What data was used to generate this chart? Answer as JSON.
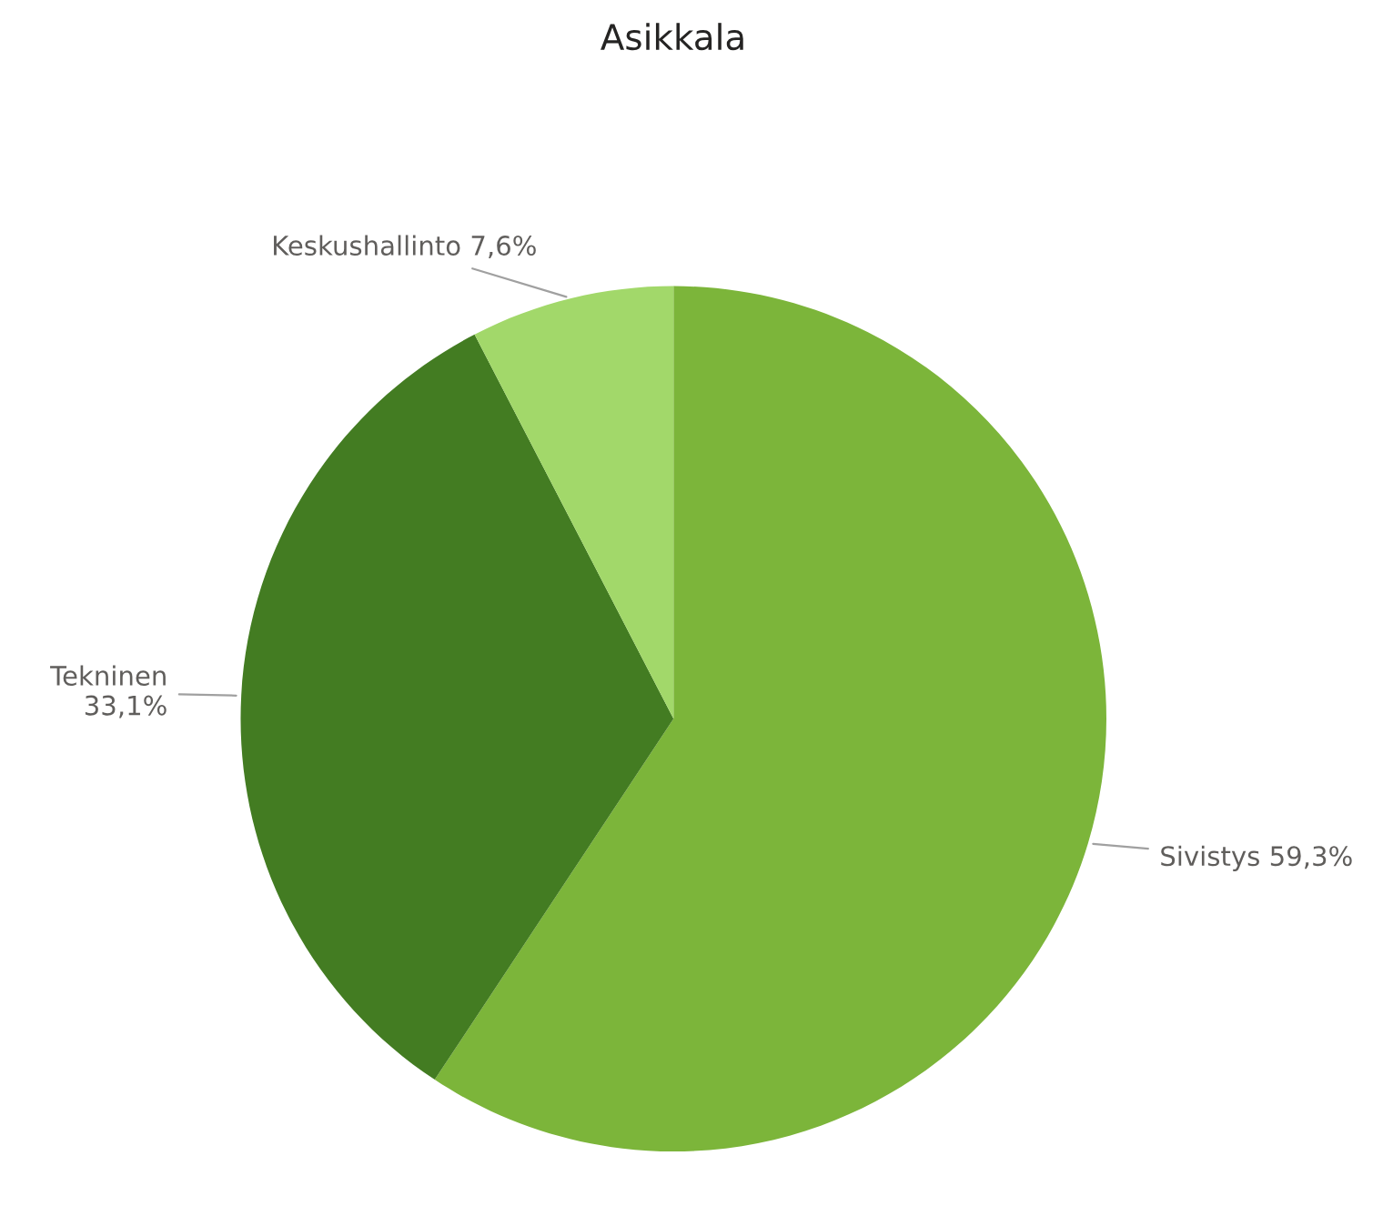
{
  "chart_data": {
    "type": "pie",
    "title": "Asikkala",
    "categories": [
      "Sivistys",
      "Tekninen",
      "Keskushallinto"
    ],
    "values": [
      59.3,
      33.1,
      7.6
    ],
    "value_labels": [
      "59,3%",
      "33,1%",
      "7,6%"
    ],
    "colors": [
      "#7cb53a",
      "#437c22",
      "#a2d86a"
    ],
    "legend": false
  }
}
